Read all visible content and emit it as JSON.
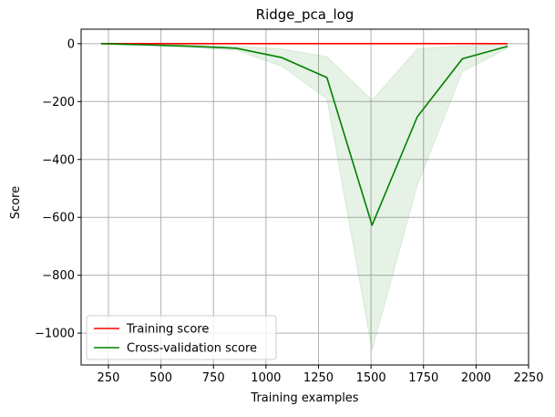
{
  "chart_data": {
    "type": "line",
    "title": "Ridge_pca_log",
    "xlabel": "Training examples",
    "ylabel": "Score",
    "xlim": [
      120,
      2250
    ],
    "ylim": [
      -1110,
      50
    ],
    "xticks": [
      250,
      500,
      750,
      1000,
      1250,
      1500,
      1750,
      2000,
      2250
    ],
    "yticks": [
      0,
      -200,
      -400,
      -600,
      -800,
      -1000
    ],
    "xtick_labels": [
      "250",
      "500",
      "750",
      "1000",
      "1250",
      "1500",
      "1750",
      "2000",
      "2250"
    ],
    "ytick_labels": [
      "0",
      "−200",
      "−400",
      "−600",
      "−800",
      "−1000"
    ],
    "grid": true,
    "legend_position": "lower-left",
    "x": [
      215,
      430,
      645,
      860,
      1075,
      1290,
      1505,
      1720,
      1935,
      2150
    ],
    "series": [
      {
        "name": "Training score",
        "color": "#ff0000",
        "values": [
          0,
          0,
          0,
          0,
          0,
          0,
          0,
          0,
          0,
          0
        ]
      },
      {
        "name": "Cross-validation score",
        "color": "#008000",
        "values": [
          0,
          -4,
          -9,
          -16,
          -48,
          -117,
          -627,
          -253,
          -52,
          -9
        ],
        "band": {
          "color": "#008000",
          "upper": [
            2,
            -1,
            -4,
            -9,
            -18,
            -45,
            -195,
            -18,
            -7,
            -2
          ],
          "lower": [
            -2,
            -7,
            -14,
            -23,
            -78,
            -190,
            -1060,
            -490,
            -97,
            -16
          ]
        }
      }
    ]
  }
}
